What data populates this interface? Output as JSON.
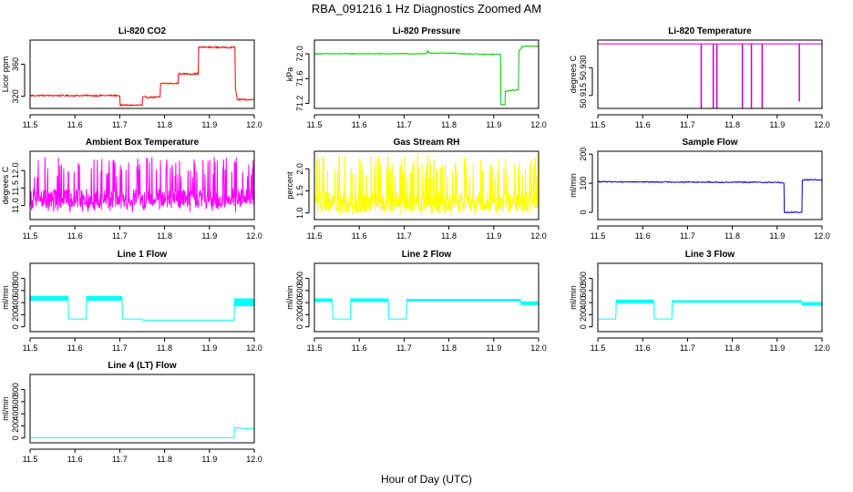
{
  "figure": {
    "title": "RBA_091216  1 Hz Diagnostics Zoomed AM",
    "xlabel": "Hour of Day (UTC)"
  },
  "chart_data": [
    {
      "type": "line",
      "title": "Li-820 CO2",
      "ylabel": "Licor ppm",
      "color": "#ff0000",
      "xlim": [
        11.5,
        12.0
      ],
      "ylim": [
        305,
        390
      ],
      "xticks": [
        11.5,
        11.6,
        11.7,
        11.8,
        11.9,
        12.0
      ],
      "xticklabels": [
        "11.5",
        "11.6",
        "11.7",
        "11.8",
        "11.9",
        "12.0"
      ],
      "yticks": [
        320,
        360
      ],
      "yticklabels": [
        "320",
        "360"
      ],
      "noise": 1,
      "x": [
        11.5,
        11.7,
        11.701,
        11.75,
        11.751,
        11.79,
        11.791,
        11.83,
        11.831,
        11.875,
        11.876,
        11.957,
        11.958,
        11.962,
        12.0
      ],
      "y": [
        321,
        321,
        309,
        309,
        319,
        319,
        336,
        336,
        348,
        348,
        381,
        381,
        330,
        316,
        316
      ]
    },
    {
      "type": "line",
      "title": "Li-820 Pressure",
      "ylabel": "kPa",
      "color": "#00cc00",
      "xlim": [
        11.5,
        12.0
      ],
      "ylim": [
        71.12,
        72.22
      ],
      "xticks": [
        11.5,
        11.6,
        11.7,
        11.8,
        11.9,
        12.0
      ],
      "xticklabels": [
        "11.5",
        "11.6",
        "11.7",
        "11.8",
        "11.9",
        "12.0"
      ],
      "yticks": [
        71.2,
        71.6,
        72.0
      ],
      "yticklabels": [
        "71.2",
        "71.6",
        "72.0"
      ],
      "noise": 0.008,
      "x": [
        11.5,
        11.58,
        11.6,
        11.75,
        11.752,
        11.755,
        11.8,
        11.88,
        11.9,
        11.915,
        11.916,
        11.925,
        11.926,
        11.955,
        11.956,
        11.962,
        11.963,
        11.97,
        12.0
      ],
      "y": [
        72.0,
        72.0,
        72.0,
        72.0,
        72.05,
        72.01,
        72.01,
        71.99,
        71.99,
        71.99,
        71.18,
        71.18,
        71.4,
        71.42,
        72.05,
        72.1,
        72.12,
        72.12,
        72.12
      ]
    },
    {
      "type": "line",
      "title": "Li-820 Temperature",
      "ylabel": "degrees C",
      "color": "#cc00cc",
      "xlim": [
        11.5,
        12.0
      ],
      "ylim": [
        50.908,
        50.945
      ],
      "xticks": [
        11.5,
        11.6,
        11.7,
        11.8,
        11.9,
        12.0
      ],
      "xticklabels": [
        "11.5",
        "11.6",
        "11.7",
        "11.8",
        "11.9",
        "12.0"
      ],
      "yticks": [
        50.915,
        50.93
      ],
      "yticklabels": [
        "50.915",
        "50.930"
      ],
      "noise": 0,
      "x": [
        11.5,
        11.73,
        11.73,
        11.731,
        11.731,
        11.757,
        11.757,
        11.758,
        11.758,
        11.765,
        11.765,
        11.766,
        11.766,
        11.822,
        11.822,
        11.823,
        11.823,
        11.842,
        11.842,
        11.843,
        11.843,
        11.866,
        11.866,
        11.867,
        11.867,
        11.949,
        11.949,
        11.95,
        11.95,
        12.0
      ],
      "y": [
        50.943,
        50.943,
        50.908,
        50.908,
        50.943,
        50.943,
        50.908,
        50.908,
        50.943,
        50.943,
        50.908,
        50.908,
        50.943,
        50.943,
        50.908,
        50.908,
        50.943,
        50.943,
        50.908,
        50.908,
        50.943,
        50.943,
        50.908,
        50.908,
        50.943,
        50.943,
        50.912,
        50.912,
        50.943,
        50.943
      ]
    },
    {
      "type": "line",
      "title": "Ambient Box Temperature",
      "ylabel": "degrees C",
      "color": "#ff00ff",
      "xlim": [
        11.5,
        12.0
      ],
      "ylim": [
        10.6,
        12.55
      ],
      "xticks": [
        11.5,
        11.6,
        11.7,
        11.8,
        11.9,
        12.0
      ],
      "xticklabels": [
        "11.5",
        "11.6",
        "11.7",
        "11.8",
        "11.9",
        "12.0"
      ],
      "yticks": [
        11.0,
        11.5,
        12.0
      ],
      "yticklabels": [
        "11.0",
        "11.5",
        "12.0"
      ],
      "noise": 0,
      "oscillate": {
        "low": 10.8,
        "high": 12.4,
        "base": 11.2,
        "count": 600
      },
      "x": [
        11.5,
        12.0
      ],
      "y": [
        11.2,
        11.2
      ]
    },
    {
      "type": "line",
      "title": "Gas Stream RH",
      "ylabel": "percent",
      "color": "#ffff00",
      "xlim": [
        11.5,
        12.0
      ],
      "ylim": [
        0.85,
        2.4
      ],
      "xticks": [
        11.5,
        11.6,
        11.7,
        11.8,
        11.9,
        12.0
      ],
      "xticklabels": [
        "11.5",
        "11.6",
        "11.7",
        "11.8",
        "11.9",
        "12.0"
      ],
      "yticks": [
        1.0,
        1.5,
        2.0
      ],
      "yticklabels": [
        "1.0",
        "1.5",
        "2.0"
      ],
      "noise": 0,
      "oscillate": {
        "low": 0.95,
        "high": 2.35,
        "base": 1.25,
        "count": 600
      },
      "x": [
        11.5,
        12.0
      ],
      "y": [
        1.25,
        1.25
      ]
    },
    {
      "type": "line",
      "title": "Sample Flow",
      "ylabel": "ml/min",
      "color": "#0000cc",
      "xlim": [
        11.5,
        12.0
      ],
      "ylim": [
        -25,
        210
      ],
      "xticks": [
        11.5,
        11.6,
        11.7,
        11.8,
        11.9,
        12.0
      ],
      "xticklabels": [
        "11.5",
        "11.6",
        "11.7",
        "11.8",
        "11.9",
        "12.0"
      ],
      "yticks": [
        0,
        100,
        200
      ],
      "yticklabels": [
        "0",
        "100",
        "200"
      ],
      "noise": 2,
      "x": [
        11.5,
        11.9,
        11.915,
        11.916,
        11.955,
        11.956,
        11.96,
        12.0
      ],
      "y": [
        105,
        103,
        100,
        0,
        0,
        110,
        112,
        112
      ]
    },
    {
      "type": "line",
      "title": "Line 1 Flow",
      "ylabel": "ml/min",
      "color": "#00ffff",
      "xlim": [
        11.5,
        12.0
      ],
      "ylim": [
        -80,
        1050
      ],
      "xticks": [
        11.5,
        11.6,
        11.7,
        11.8,
        11.9,
        12.0
      ],
      "xticklabels": [
        "11.5",
        "11.6",
        "11.7",
        "11.8",
        "11.9",
        "12.0"
      ],
      "yticks": [
        0,
        200,
        400,
        600,
        800
      ],
      "yticklabels": [
        "0",
        "200",
        "400",
        "600",
        "800"
      ],
      "noise": 0,
      "bands": [
        [
          11.5,
          11.585,
          430,
          510
        ],
        [
          11.625,
          11.705,
          430,
          510
        ],
        [
          11.955,
          12.0,
          340,
          470
        ]
      ],
      "x": [
        11.5,
        11.585,
        11.586,
        11.625,
        11.626,
        11.705,
        11.706,
        11.75,
        11.751,
        11.955,
        11.956,
        12.0
      ],
      "y": [
        470,
        470,
        130,
        130,
        470,
        470,
        130,
        130,
        110,
        110,
        400,
        400
      ]
    },
    {
      "type": "line",
      "title": "Line 2 Flow",
      "ylabel": "ml/min",
      "color": "#00ffff",
      "xlim": [
        11.5,
        12.0
      ],
      "ylim": [
        -80,
        1050
      ],
      "xticks": [
        11.5,
        11.6,
        11.7,
        11.8,
        11.9,
        12.0
      ],
      "xticklabels": [
        "11.5",
        "11.6",
        "11.7",
        "11.8",
        "11.9",
        "12.0"
      ],
      "yticks": [
        0,
        200,
        400,
        600,
        800
      ],
      "yticklabels": [
        "0",
        "200",
        "400",
        "600",
        "800"
      ],
      "noise": 0,
      "bands": [
        [
          11.5,
          11.54,
          410,
          470
        ],
        [
          11.58,
          11.665,
          410,
          470
        ],
        [
          11.705,
          11.96,
          420,
          460
        ],
        [
          11.96,
          12.0,
          360,
          420
        ]
      ],
      "x": [
        11.5,
        11.54,
        11.541,
        11.58,
        11.581,
        11.665,
        11.666,
        11.705,
        11.706,
        11.96,
        11.961,
        12.0
      ],
      "y": [
        440,
        440,
        130,
        130,
        440,
        440,
        130,
        130,
        440,
        440,
        390,
        390
      ]
    },
    {
      "type": "line",
      "title": "Line 3 Flow",
      "ylabel": "ml/min",
      "color": "#00ffff",
      "xlim": [
        11.5,
        12.0
      ],
      "ylim": [
        -80,
        1050
      ],
      "xticks": [
        11.5,
        11.6,
        11.7,
        11.8,
        11.9,
        12.0
      ],
      "xticklabels": [
        "11.5",
        "11.6",
        "11.7",
        "11.8",
        "11.9",
        "12.0"
      ],
      "yticks": [
        0,
        200,
        400,
        600,
        800
      ],
      "yticklabels": [
        "0",
        "200",
        "400",
        "600",
        "800"
      ],
      "noise": 0,
      "bands": [
        [
          11.54,
          11.625,
          390,
          450
        ],
        [
          11.665,
          11.955,
          400,
          440
        ],
        [
          11.955,
          12.0,
          350,
          410
        ]
      ],
      "x": [
        11.5,
        11.54,
        11.541,
        11.625,
        11.626,
        11.665,
        11.666,
        11.955,
        11.956,
        12.0
      ],
      "y": [
        130,
        130,
        420,
        420,
        130,
        130,
        420,
        420,
        380,
        380
      ]
    },
    {
      "type": "line",
      "title": "Line 4 (LT) Flow",
      "ylabel": "ml/min",
      "color": "#00ffff",
      "xlim": [
        11.5,
        12.0
      ],
      "ylim": [
        -80,
        1050
      ],
      "xticks": [
        11.5,
        11.6,
        11.7,
        11.8,
        11.9,
        12.0
      ],
      "xticklabels": [
        "11.5",
        "11.6",
        "11.7",
        "11.8",
        "11.9",
        "12.0"
      ],
      "yticks": [
        0,
        200,
        400,
        600,
        800
      ],
      "yticklabels": [
        "0",
        "200",
        "400",
        "600",
        "800"
      ],
      "noise": 0,
      "x": [
        11.5,
        11.955,
        11.956,
        11.96,
        11.98,
        12.0
      ],
      "y": [
        5,
        5,
        160,
        170,
        155,
        160
      ]
    }
  ]
}
